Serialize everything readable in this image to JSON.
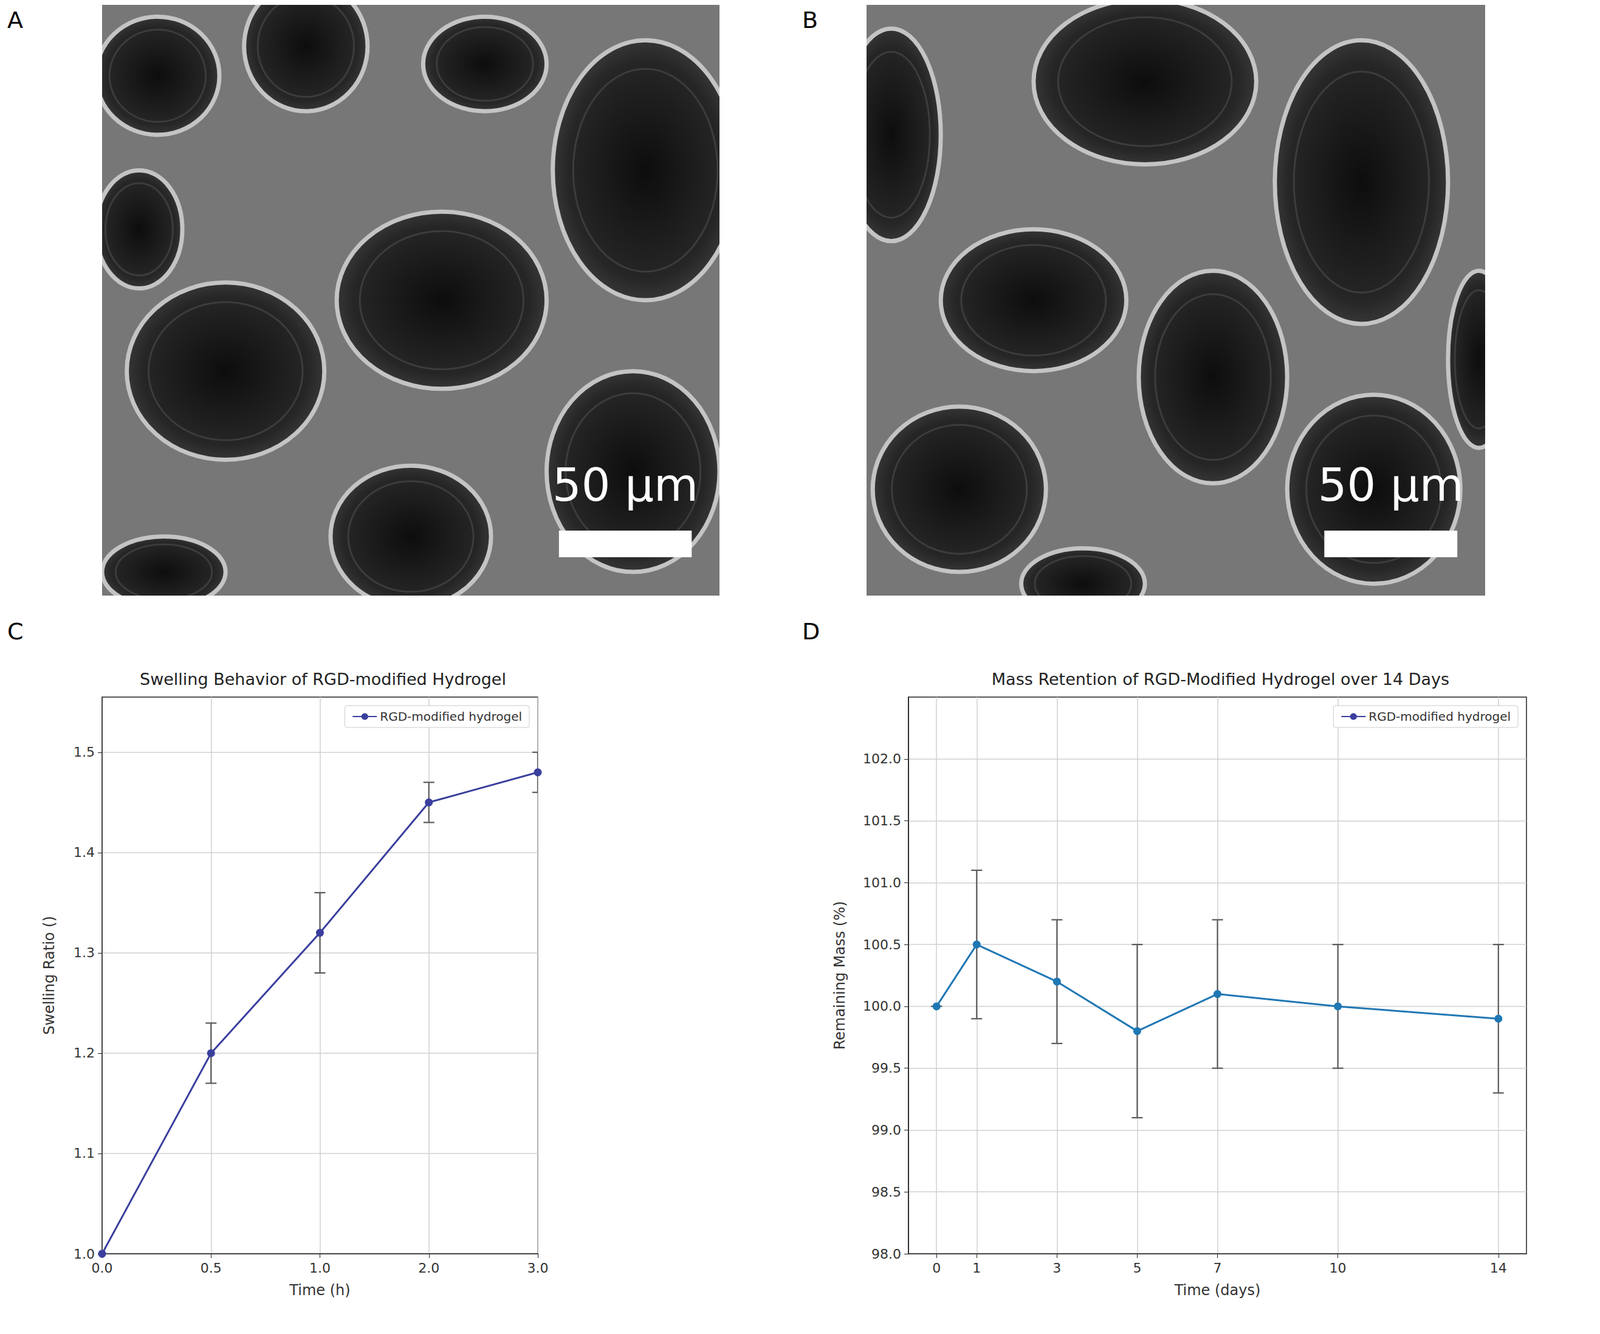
{
  "panels": [
    {
      "letter": "A",
      "scale_bar": "50 µm"
    },
    {
      "letter": "B",
      "scale_bar": "50 µm"
    }
  ],
  "chart_data": [
    {
      "letter": "C",
      "type": "line",
      "title": "Swelling Behavior of RGD-modified Hydrogel",
      "x_label": "Time (h)",
      "y_label": "Swelling Ratio ()",
      "categories": [
        "0.0",
        "0.5",
        "1.0",
        "2.0",
        "3.0"
      ],
      "series": [
        {
          "name": "RGD-modified hydrogel",
          "color": "#3a3f9e",
          "marker": "circle",
          "line_style": "solid",
          "values": [
            1.0,
            1.2,
            1.32,
            1.45,
            1.48
          ],
          "errors": [
            0,
            0.03,
            0.04,
            0.02,
            0.02
          ]
        }
      ],
      "ylim": [
        1.0,
        1.555
      ],
      "yticks": [
        {
          "value": 1.0,
          "label": "1.0"
        },
        1.1,
        1.2,
        1.3,
        1.4,
        1.5
      ],
      "grid": true,
      "legend": "upper right"
    },
    {
      "letter": "D",
      "type": "line",
      "title": "Mass Retention of RGD-Modified Hydrogel over 14 Days",
      "x_label": "Time (days)",
      "y_label": "Remaining Mass (%)",
      "x": [
        0,
        1,
        3,
        5,
        7,
        10,
        14
      ],
      "series": [
        {
          "name": "RGD-modified hydrogel",
          "color": "#1f77b4",
          "marker": "circle",
          "line_style": "solid",
          "values": [
            100.0,
            100.5,
            100.2,
            99.8,
            100.1,
            100.0,
            99.9
          ],
          "errors": [
            0,
            0.6,
            0.5,
            0.7,
            0.6,
            0.5,
            0.6
          ]
        }
      ],
      "xlim": [
        -0.7,
        14.7
      ],
      "xticks": [
        0,
        1,
        3,
        5,
        7,
        10,
        14
      ],
      "ylim": [
        98.0,
        102.5
      ],
      "yticks": [
        {
          "value": 98.0,
          "label": "98.0"
        },
        98.5,
        {
          "value": 99.0,
          "label": "99.0"
        },
        99.5,
        {
          "value": 100.0,
          "label": "100.0"
        },
        100.5,
        {
          "value": 101.0,
          "label": "101.0"
        },
        101.5,
        {
          "value": 102.0,
          "label": "102.0"
        }
      ],
      "grid": true,
      "legend": "upper right"
    }
  ]
}
